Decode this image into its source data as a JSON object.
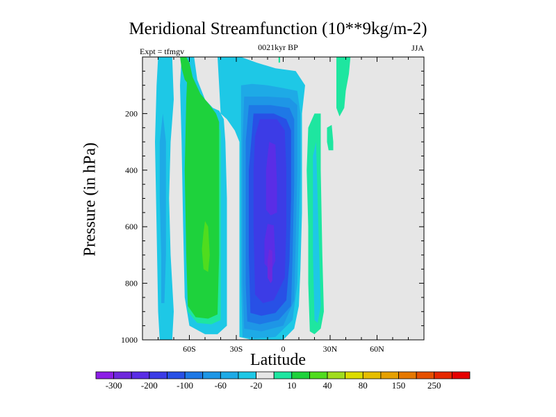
{
  "chart_data": {
    "type": "contour",
    "title": "Meridional Streamfunction (10**9kg/m-2)",
    "left_label": "Expt = tfmgv",
    "center_label": "0021kyr BP",
    "right_label": "JJA",
    "xlabel": "Latitude",
    "ylabel": "Pressure (in hPa)",
    "xlim": [
      -90,
      90
    ],
    "ylim": [
      1000,
      0
    ],
    "x_ticks": [
      -60,
      -30,
      0,
      30,
      60
    ],
    "x_tick_labels": [
      "60S",
      "30S",
      "0",
      "30N",
      "60N"
    ],
    "y_ticks": [
      200,
      400,
      600,
      800,
      1000
    ],
    "y_tick_labels": [
      "200",
      "400",
      "600",
      "800",
      "1000"
    ],
    "colorbar": {
      "label_values": [
        "-300",
        "-200",
        "-100",
        "-60",
        "-20",
        "10",
        "40",
        "80",
        "150",
        "250"
      ],
      "colors": [
        "#8c1ee6",
        "#6e28dc",
        "#5a2de6",
        "#3c3ce6",
        "#2850e6",
        "#1e78e6",
        "#1e96e6",
        "#1eaae6",
        "#1ec8e6",
        "#e6e6e6",
        "#1ee6a0",
        "#1ed23c",
        "#50dc1e",
        "#a0dc1e",
        "#dcdc00",
        "#e6be00",
        "#e6a000",
        "#e67800",
        "#e65000",
        "#e62800",
        "#e60000"
      ]
    },
    "background": "#e6e6e6",
    "contours": [
      {
        "color": "#1ec8e6",
        "points": [
          [
            -80,
            0
          ],
          [
            -71,
            0
          ],
          [
            -70,
            150
          ],
          [
            -72,
            300
          ],
          [
            -73,
            500
          ],
          [
            -72,
            700
          ],
          [
            -70,
            900
          ],
          [
            -71,
            1000
          ],
          [
            -79,
            1000
          ],
          [
            -80,
            900
          ],
          [
            -81,
            600
          ],
          [
            -82,
            300
          ],
          [
            -81,
            100
          ]
        ]
      },
      {
        "color": "#1eaae6",
        "points": [
          [
            -77,
            200
          ],
          [
            -75,
            300
          ],
          [
            -75,
            500
          ],
          [
            -75,
            700
          ],
          [
            -76,
            870
          ],
          [
            -78,
            870
          ],
          [
            -78,
            700
          ],
          [
            -79,
            500
          ],
          [
            -79,
            300
          ]
        ]
      },
      {
        "color": "#1ec8e6",
        "points": [
          [
            -65,
            0
          ],
          [
            -57,
            0
          ],
          [
            -55,
            80
          ],
          [
            -50,
            150
          ],
          [
            -45,
            180
          ],
          [
            -41,
            190
          ],
          [
            -38,
            220
          ],
          [
            -37,
            300
          ],
          [
            -36,
            500
          ],
          [
            -36,
            800
          ],
          [
            -36,
            950
          ],
          [
            -42,
            980
          ],
          [
            -50,
            980
          ],
          [
            -60,
            950
          ],
          [
            -63,
            850
          ],
          [
            -64,
            600
          ],
          [
            -65,
            300
          ],
          [
            -66,
            100
          ]
        ]
      },
      {
        "color": "#1ee6a0",
        "points": [
          [
            -62,
            150
          ],
          [
            -57,
            160
          ],
          [
            -50,
            200
          ],
          [
            -44,
            240
          ],
          [
            -40,
            260
          ],
          [
            -40,
            400
          ],
          [
            -40,
            700
          ],
          [
            -40,
            930
          ],
          [
            -46,
            945
          ],
          [
            -55,
            940
          ],
          [
            -61,
            900
          ],
          [
            -62,
            700
          ],
          [
            -63,
            400
          ],
          [
            -62,
            250
          ]
        ]
      },
      {
        "color": "#1ed23c",
        "points": [
          [
            -60,
            20
          ],
          [
            -58,
            70
          ],
          [
            -53,
            130
          ],
          [
            -47,
            170
          ],
          [
            -43,
            200
          ],
          [
            -41,
            230
          ],
          [
            -41,
            400
          ],
          [
            -41,
            700
          ],
          [
            -42,
            910
          ],
          [
            -48,
            925
          ],
          [
            -56,
            920
          ],
          [
            -61,
            880
          ],
          [
            -62,
            700
          ],
          [
            -63,
            400
          ],
          [
            -62,
            150
          ],
          [
            -61,
            20
          ]
        ]
      },
      {
        "color": "#1ed23c",
        "points": [
          [
            -66,
            0
          ],
          [
            -62,
            0
          ],
          [
            -60,
            20
          ],
          [
            -58,
            70
          ],
          [
            -60,
            100
          ],
          [
            -63,
            80
          ],
          [
            -65,
            40
          ]
        ]
      },
      {
        "color": "#50dc1e",
        "points": [
          [
            -50,
            580
          ],
          [
            -48,
            600
          ],
          [
            -47,
            700
          ],
          [
            -48,
            760
          ],
          [
            -51,
            750
          ],
          [
            -52,
            680
          ],
          [
            -51,
            620
          ]
        ]
      },
      {
        "color": "#1ec8e6",
        "points": [
          [
            -42,
            0
          ],
          [
            -27,
            0
          ],
          [
            -17,
            20
          ],
          [
            -5,
            40
          ],
          [
            8,
            50
          ],
          [
            14,
            100
          ],
          [
            12,
            200
          ],
          [
            12,
            400
          ],
          [
            12,
            550
          ],
          [
            11,
            750
          ],
          [
            10,
            880
          ],
          [
            7,
            960
          ],
          [
            0,
            1000
          ],
          [
            -20,
            1000
          ],
          [
            -28,
            990
          ],
          [
            -28,
            700
          ],
          [
            -28,
            400
          ],
          [
            -28,
            300
          ],
          [
            -31,
            260
          ],
          [
            -36,
            220
          ],
          [
            -40,
            200
          ],
          [
            -41,
            100
          ]
        ]
      },
      {
        "color": "#1eaae6",
        "points": [
          [
            -27,
            100
          ],
          [
            -20,
            95
          ],
          [
            -10,
            100
          ],
          [
            0,
            110
          ],
          [
            9,
            120
          ],
          [
            11,
            200
          ],
          [
            11,
            400
          ],
          [
            10,
            600
          ],
          [
            9,
            800
          ],
          [
            6,
            930
          ],
          [
            -5,
            990
          ],
          [
            -18,
            995
          ],
          [
            -26,
            990
          ],
          [
            -27,
            800
          ],
          [
            -27,
            500
          ],
          [
            -27,
            300
          ]
        ]
      },
      {
        "color": "#1e96e6",
        "points": [
          [
            -25,
            140
          ],
          [
            -10,
            140
          ],
          [
            4,
            145
          ],
          [
            9,
            170
          ],
          [
            9,
            400
          ],
          [
            8,
            650
          ],
          [
            7,
            860
          ],
          [
            0,
            950
          ],
          [
            -14,
            970
          ],
          [
            -25,
            960
          ],
          [
            -26,
            800
          ],
          [
            -26,
            500
          ],
          [
            -26,
            300
          ]
        ]
      },
      {
        "color": "#1e78e6",
        "points": [
          [
            -22,
            170
          ],
          [
            -8,
            170
          ],
          [
            4,
            180
          ],
          [
            7,
            220
          ],
          [
            7,
            450
          ],
          [
            6,
            700
          ],
          [
            5,
            880
          ],
          [
            -3,
            930
          ],
          [
            -15,
            945
          ],
          [
            -23,
            935
          ],
          [
            -24,
            800
          ],
          [
            -24,
            500
          ],
          [
            -24,
            300
          ]
        ]
      },
      {
        "color": "#2850e6",
        "points": [
          [
            -19,
            200
          ],
          [
            -6,
            200
          ],
          [
            2,
            220
          ],
          [
            5,
            260
          ],
          [
            5,
            500
          ],
          [
            4,
            720
          ],
          [
            2,
            860
          ],
          [
            -5,
            905
          ],
          [
            -14,
            915
          ],
          [
            -21,
            905
          ],
          [
            -22,
            700
          ],
          [
            -22,
            400
          ]
        ]
      },
      {
        "color": "#3c3ce6",
        "points": [
          [
            -15,
            220
          ],
          [
            -4,
            220
          ],
          [
            1,
            260
          ],
          [
            2,
            400
          ],
          [
            2,
            600
          ],
          [
            1,
            780
          ],
          [
            -6,
            860
          ],
          [
            -13,
            870
          ],
          [
            -18,
            840
          ],
          [
            -19,
            600
          ],
          [
            -19,
            400
          ],
          [
            -18,
            280
          ]
        ]
      },
      {
        "color": "#5a2de6",
        "points": [
          [
            -9,
            300
          ],
          [
            -5,
            310
          ],
          [
            -4,
            450
          ],
          [
            -4,
            550
          ],
          [
            -8,
            560
          ],
          [
            -11,
            540
          ],
          [
            -11,
            400
          ]
        ]
      },
      {
        "color": "#5a2de6",
        "points": [
          [
            -10,
            590
          ],
          [
            -6,
            595
          ],
          [
            -5,
            720
          ],
          [
            -8,
            760
          ],
          [
            -12,
            730
          ],
          [
            -12,
            650
          ]
        ]
      },
      {
        "color": "#6e28dc",
        "points": [
          [
            -9,
            680
          ],
          [
            -7,
            685
          ],
          [
            -7,
            790
          ],
          [
            -8,
            800
          ],
          [
            -10,
            780
          ],
          [
            -10,
            720
          ]
        ]
      },
      {
        "color": "#1ee6a0",
        "points": [
          [
            16,
            250
          ],
          [
            20,
            200
          ],
          [
            24,
            200
          ],
          [
            24,
            400
          ],
          [
            25,
            700
          ],
          [
            26,
            900
          ],
          [
            24,
            960
          ],
          [
            20,
            980
          ],
          [
            17,
            970
          ],
          [
            16,
            800
          ],
          [
            16,
            600
          ],
          [
            15,
            400
          ]
        ]
      },
      {
        "color": "#1ec8e6",
        "points": [
          [
            21,
            300
          ],
          [
            22,
            500
          ],
          [
            23,
            700
          ],
          [
            24,
            880
          ],
          [
            22,
            940
          ],
          [
            20,
            930
          ],
          [
            19,
            700
          ],
          [
            19,
            500
          ],
          [
            19,
            350
          ]
        ]
      },
      {
        "color": "#1ee6a0",
        "points": [
          [
            28,
            250
          ],
          [
            31,
            240
          ],
          [
            32,
            300
          ],
          [
            32,
            330
          ],
          [
            29,
            330
          ],
          [
            28,
            300
          ]
        ]
      },
      {
        "color": "#1ee6a0",
        "points": [
          [
            34,
            0
          ],
          [
            43,
            0
          ],
          [
            42,
            60
          ],
          [
            40,
            120
          ],
          [
            39,
            180
          ],
          [
            36,
            210
          ],
          [
            34,
            180
          ],
          [
            34,
            100
          ]
        ]
      },
      {
        "color": "#1ee6a0",
        "points": [
          [
            -3,
            0
          ],
          [
            -2,
            0
          ],
          [
            -2,
            20
          ],
          [
            -3,
            20
          ]
        ]
      }
    ]
  }
}
